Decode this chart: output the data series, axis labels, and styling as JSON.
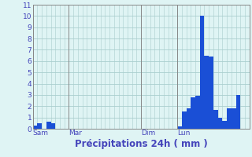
{
  "title": "",
  "xlabel": "Précipitations 24h ( mm )",
  "ylabel": "",
  "background_color": "#dff4f4",
  "bar_color": "#1a4fd6",
  "grid_color": "#aacece",
  "axis_label_color": "#4444bb",
  "tick_label_color": "#4444bb",
  "ylim": [
    0,
    11
  ],
  "yticks": [
    0,
    1,
    2,
    3,
    4,
    5,
    6,
    7,
    8,
    9,
    10,
    11
  ],
  "num_bars": 48,
  "bar_values": [
    0.3,
    0.5,
    0.0,
    0.6,
    0.5,
    0.0,
    0.0,
    0.0,
    0.0,
    0.0,
    0.0,
    0.0,
    0.0,
    0.0,
    0.0,
    0.0,
    0.0,
    0.0,
    0.0,
    0.0,
    0.0,
    0.0,
    0.0,
    0.0,
    0.0,
    0.0,
    0.0,
    0.0,
    0.0,
    0.0,
    0.0,
    0.0,
    0.2,
    1.5,
    1.8,
    2.8,
    2.9,
    10.0,
    6.5,
    6.4,
    1.7,
    1.0,
    0.7,
    1.8,
    1.8,
    3.0,
    0.0,
    0.0
  ],
  "day_labels": [
    "Sam",
    "Mar",
    "Dim",
    "Lun"
  ],
  "day_positions": [
    0,
    8,
    24,
    32
  ],
  "xlabel_fontsize": 8.5,
  "tick_fontsize": 6.5,
  "vline_color": "#888888"
}
